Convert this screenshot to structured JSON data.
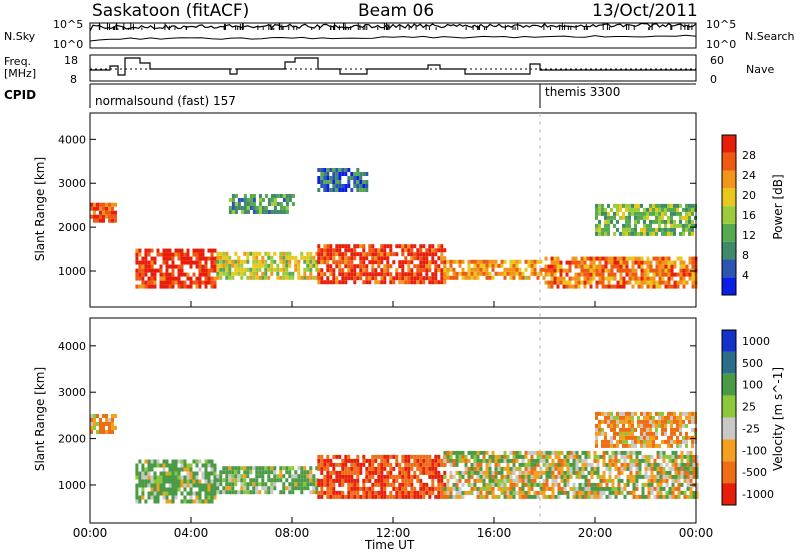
{
  "header": {
    "station": "Saskatoon (fitACF)",
    "beam": "Beam 06",
    "date": "13/Oct/2011"
  },
  "noise_panel": {
    "left_label": "N.Sky",
    "right_label": "N.Search",
    "left_ticks": [
      "10^5",
      "10^0"
    ],
    "right_ticks": [
      "10^5",
      "10^0"
    ]
  },
  "freq_panel": {
    "left_label_1": "Freq.",
    "left_label_2": "[MHz]",
    "right_label": "Nave",
    "left_ticks": [
      "18",
      "8"
    ],
    "right_ticks": [
      "60",
      "0"
    ]
  },
  "cpid_panel": {
    "label": "CPID",
    "mode_1": "normalsound (fast) 157",
    "mode_2": "themis 3300"
  },
  "x_axis": {
    "label": "Time UT",
    "ticks": [
      "00:00",
      "04:00",
      "08:00",
      "12:00",
      "16:00",
      "20:00",
      "00:00"
    ]
  },
  "chart_data": [
    {
      "type": "heatmap",
      "title": "",
      "ylabel": "Slant Range [km]",
      "xlabel": "",
      "y_ticks": [
        "1000",
        "2000",
        "3000",
        "4000"
      ],
      "ylim": [
        180,
        4600
      ],
      "xlim": [
        "00:00",
        "24:00"
      ],
      "colorbar_label": "Power [dB]",
      "colorbar_ticks": [
        "4",
        "8",
        "12",
        "16",
        "20",
        "24",
        "28"
      ],
      "colorbar_colors": [
        "#0a1ee6",
        "#2a55b0",
        "#3f8a6a",
        "#57a94f",
        "#9ccc3c",
        "#e8c81c",
        "#f2951a",
        "#ef5a12",
        "#e81e0a"
      ],
      "echo_bands": [
        {
          "start_h": 0.0,
          "end_h": 1.0,
          "range_km": [
            2100,
            2500
          ],
          "power_db": 26
        },
        {
          "start_h": 1.8,
          "end_h": 5.0,
          "range_km": [
            600,
            1500
          ],
          "power_db": 28
        },
        {
          "start_h": 5.0,
          "end_h": 9.0,
          "range_km": [
            800,
            1400
          ],
          "power_db": 18
        },
        {
          "start_h": 9.0,
          "end_h": 14.0,
          "range_km": [
            700,
            1600
          ],
          "power_db": 27
        },
        {
          "start_h": 14.0,
          "end_h": 18.0,
          "range_km": [
            800,
            1200
          ],
          "power_db": 22
        },
        {
          "start_h": 18.0,
          "end_h": 24.0,
          "range_km": [
            600,
            1300
          ],
          "power_db": 24
        },
        {
          "start_h": 5.5,
          "end_h": 8.0,
          "range_km": [
            2300,
            2700
          ],
          "power_db": 12
        },
        {
          "start_h": 9.0,
          "end_h": 11.0,
          "range_km": [
            2800,
            3300
          ],
          "power_db": 8
        },
        {
          "start_h": 20.0,
          "end_h": 24.0,
          "range_km": [
            1800,
            2500
          ],
          "power_db": 14
        }
      ]
    },
    {
      "type": "heatmap",
      "title": "",
      "ylabel": "Slant Range [km]",
      "xlabel": "Time UT",
      "y_ticks": [
        "1000",
        "2000",
        "3000",
        "4000"
      ],
      "ylim": [
        180,
        4600
      ],
      "xlim": [
        "00:00",
        "24:00"
      ],
      "colorbar_label": "Velocity [m s^-1]",
      "colorbar_ticks": [
        "1000",
        "500",
        "100",
        "25",
        "-25",
        "-100",
        "-500",
        "-1000"
      ],
      "colorbar_colors": [
        "#1432c8",
        "#2a6e8a",
        "#4a9a46",
        "#8cc83c",
        "#c8c8c8",
        "#f2a01e",
        "#ef6e14",
        "#e81e0a"
      ],
      "echo_bands": [
        {
          "start_h": 0.0,
          "end_h": 1.0,
          "range_km": [
            2100,
            2500
          ],
          "velocity": -100
        },
        {
          "start_h": 1.8,
          "end_h": 5.0,
          "range_km": [
            600,
            1500
          ],
          "velocity": 100
        },
        {
          "start_h": 5.0,
          "end_h": 9.0,
          "range_km": [
            800,
            1400
          ],
          "velocity": 100
        },
        {
          "start_h": 9.0,
          "end_h": 14.0,
          "range_km": [
            700,
            1600
          ],
          "velocity": -500
        },
        {
          "start_h": 14.0,
          "end_h": 24.0,
          "range_km": [
            700,
            1700
          ],
          "velocity": 0
        },
        {
          "start_h": 20.0,
          "end_h": 24.0,
          "range_km": [
            1800,
            2500
          ],
          "velocity": -100
        }
      ]
    }
  ]
}
